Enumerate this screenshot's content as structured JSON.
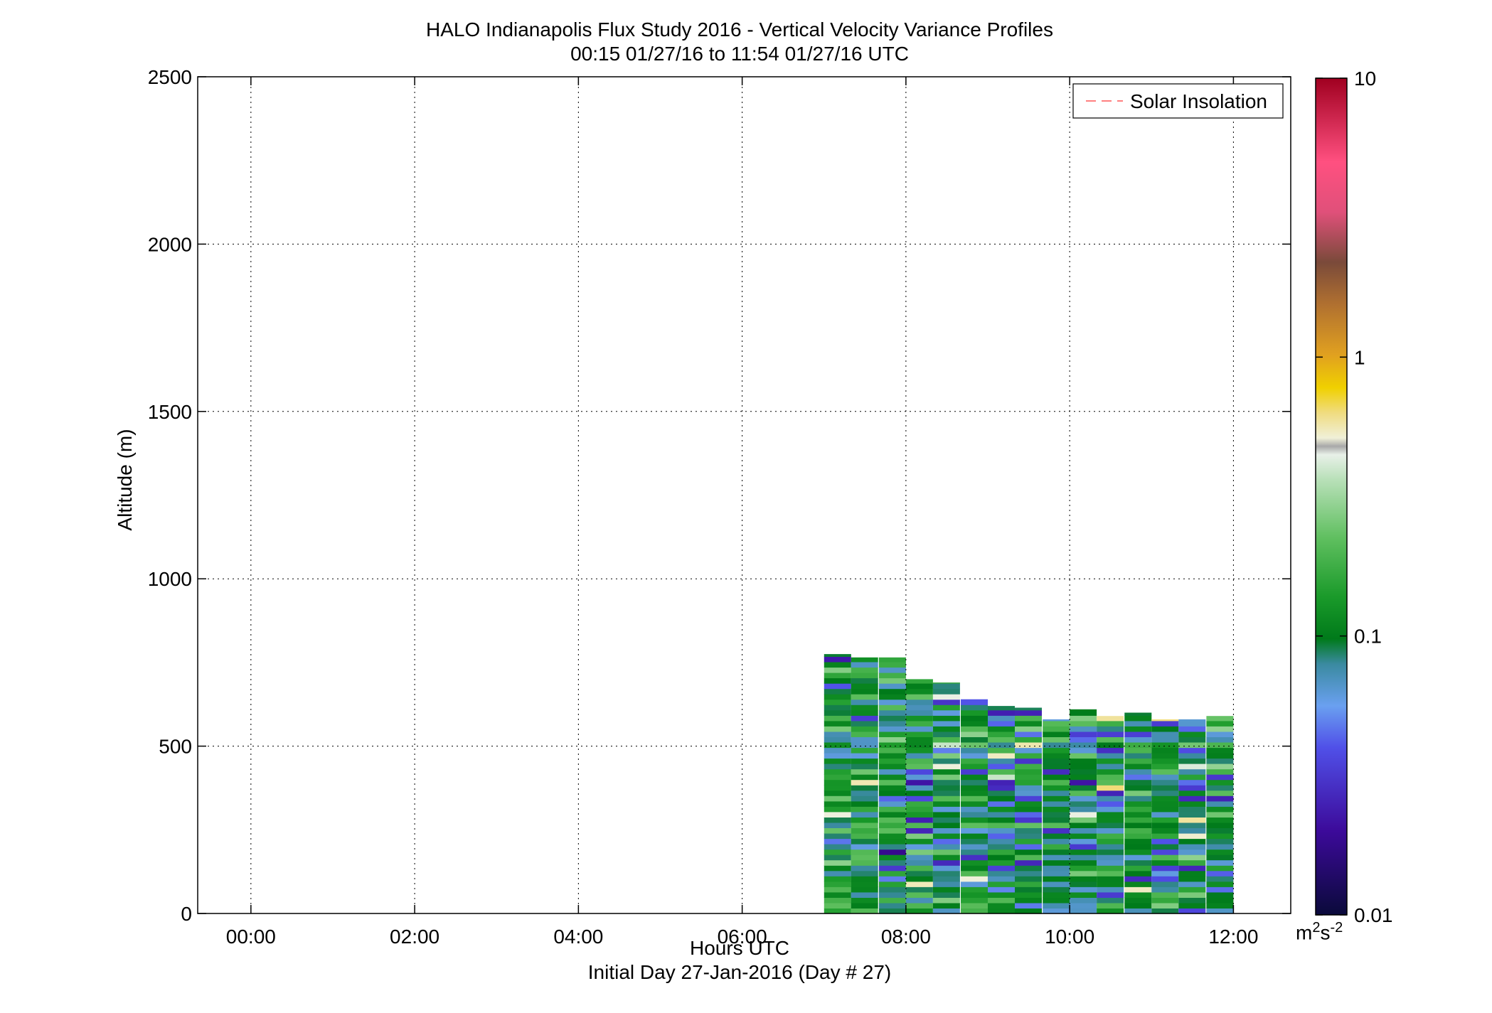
{
  "chart_data": {
    "type": "heatmap",
    "title": "HALO Indianapolis Flux Study 2016 - Vertical Velocity Variance Profiles",
    "subtitle": "00:15 01/27/16 to 11:54 01/27/16  UTC",
    "xlabel": "Hours UTC",
    "xlabel_sub": "Initial Day 27-Jan-2016 (Day # 27)",
    "ylabel": "Altitude (m)",
    "x_unit": "hours UTC",
    "xlim": [
      -0.65,
      12.7
    ],
    "ylim": [
      0,
      2500
    ],
    "x_ticks": [
      {
        "value": 0,
        "label": "00:00"
      },
      {
        "value": 2,
        "label": "02:00"
      },
      {
        "value": 4,
        "label": "04:00"
      },
      {
        "value": 6,
        "label": "06:00"
      },
      {
        "value": 8,
        "label": "08:00"
      },
      {
        "value": 10,
        "label": "10:00"
      },
      {
        "value": 12,
        "label": "12:00"
      }
    ],
    "y_ticks": [
      {
        "value": 0,
        "label": "0"
      },
      {
        "value": 500,
        "label": "500"
      },
      {
        "value": 1000,
        "label": "1000"
      },
      {
        "value": 1500,
        "label": "1500"
      },
      {
        "value": 2000,
        "label": "2000"
      },
      {
        "value": 2500,
        "label": "2500"
      }
    ],
    "grid": true,
    "legend": {
      "placement": "top-right",
      "entries": [
        {
          "label": "Solar Insolation",
          "style": "dashed",
          "color": "#ff8080"
        }
      ]
    },
    "colorbar": {
      "scale": "log",
      "range": [
        0.01,
        10
      ],
      "ticks": [
        {
          "value": 0.01,
          "label": "0.01"
        },
        {
          "value": 0.1,
          "label": "0.1"
        },
        {
          "value": 1,
          "label": "1"
        },
        {
          "value": 10,
          "label": "10"
        }
      ],
      "unit_base": "m",
      "unit_exp1": "2",
      "unit_mid": "s",
      "unit_exp2": "-2"
    },
    "profiles": [
      {
        "time": 7.0,
        "top_altitude": 775
      },
      {
        "time": 7.33,
        "top_altitude": 765
      },
      {
        "time": 7.67,
        "top_altitude": 765
      },
      {
        "time": 8.0,
        "top_altitude": 700
      },
      {
        "time": 8.33,
        "top_altitude": 690
      },
      {
        "time": 8.67,
        "top_altitude": 640
      },
      {
        "time": 9.0,
        "top_altitude": 620
      },
      {
        "time": 9.33,
        "top_altitude": 615
      },
      {
        "time": 9.67,
        "top_altitude": 580
      },
      {
        "time": 10.0,
        "top_altitude": 610
      },
      {
        "time": 10.33,
        "top_altitude": 590
      },
      {
        "time": 10.67,
        "top_altitude": 600
      },
      {
        "time": 11.0,
        "top_altitude": 580
      },
      {
        "time": 11.33,
        "top_altitude": 580
      },
      {
        "time": 11.67,
        "top_altitude": 590
      }
    ],
    "profile_width_hours": 0.33,
    "dominant_value_range": [
      0.05,
      0.2
    ]
  }
}
